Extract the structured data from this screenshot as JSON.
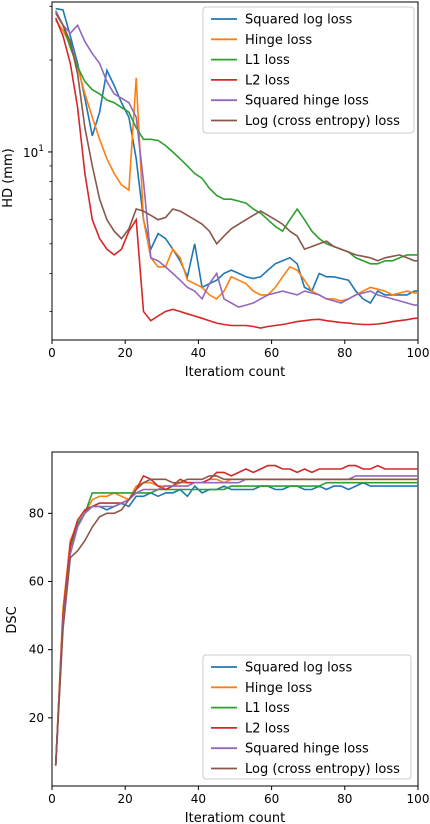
{
  "chart_data": [
    {
      "type": "line",
      "xlabel": "Iteratiom count",
      "ylabel": "HD (mm)",
      "yscale": "log",
      "xlim": [
        0,
        100
      ],
      "ylim": [
        2.42,
        31.0
      ],
      "xticks": [
        0,
        20,
        40,
        60,
        80,
        100
      ],
      "xtick_labels": [
        "0",
        "20",
        "40",
        "60",
        "80",
        "100"
      ],
      "ytick_label": "10^1",
      "legend": "top-right",
      "x": [
        1,
        3,
        5,
        7,
        9,
        11,
        13,
        15,
        17,
        19,
        21,
        23,
        25,
        27,
        29,
        31,
        33,
        35,
        37,
        39,
        41,
        43,
        45,
        47,
        49,
        51,
        53,
        55,
        57,
        59,
        61,
        63,
        65,
        67,
        69,
        71,
        73,
        75,
        77,
        79,
        81,
        83,
        85,
        87,
        89,
        91,
        93,
        95,
        97,
        99,
        100
      ],
      "series": [
        {
          "name": "Squared log loss",
          "color": "#1f77b4",
          "values": [
            29.5,
            29.2,
            24.0,
            19.5,
            15.0,
            11.3,
            13.5,
            18.5,
            16.5,
            14.5,
            13.0,
            9.5,
            6.0,
            4.8,
            5.4,
            5.2,
            4.8,
            4.4,
            3.9,
            5.0,
            3.6,
            3.7,
            3.8,
            4.0,
            4.1,
            4.0,
            3.9,
            3.85,
            3.9,
            4.1,
            4.3,
            4.4,
            4.5,
            4.3,
            3.6,
            3.5,
            4.0,
            3.9,
            3.9,
            3.85,
            3.8,
            3.5,
            3.3,
            3.2,
            3.5,
            3.4,
            3.4,
            3.4,
            3.4,
            3.5,
            3.5
          ]
        },
        {
          "name": "Hinge loss",
          "color": "#ff7f0e",
          "values": [
            27.0,
            25.0,
            22.5,
            19.0,
            15.5,
            13.0,
            11.0,
            9.5,
            8.5,
            7.8,
            7.5,
            17.5,
            6.0,
            4.5,
            4.2,
            4.2,
            4.8,
            4.5,
            3.8,
            3.7,
            3.6,
            3.4,
            3.3,
            3.5,
            3.9,
            3.8,
            3.7,
            3.5,
            3.4,
            3.4,
            3.6,
            3.9,
            4.2,
            4.1,
            3.8,
            3.5,
            3.4,
            3.3,
            3.3,
            3.25,
            3.3,
            3.4,
            3.5,
            3.6,
            3.55,
            3.5,
            3.4,
            3.45,
            3.5,
            3.45,
            3.45
          ]
        },
        {
          "name": "L1 loss",
          "color": "#2ca02c",
          "values": [
            29.0,
            26.0,
            22.0,
            19.0,
            17.0,
            16.0,
            15.5,
            14.8,
            14.5,
            14.0,
            13.5,
            12.0,
            11.0,
            11.0,
            10.9,
            10.5,
            10.0,
            9.5,
            9.0,
            8.5,
            8.2,
            7.6,
            7.2,
            7.0,
            7.0,
            6.9,
            6.8,
            6.5,
            6.3,
            6.0,
            5.7,
            5.5,
            6.0,
            6.5,
            6.0,
            5.5,
            5.2,
            5.0,
            4.9,
            4.8,
            4.7,
            4.5,
            4.4,
            4.3,
            4.3,
            4.4,
            4.4,
            4.5,
            4.6,
            4.6,
            4.6
          ]
        },
        {
          "name": "L2 loss",
          "color": "#d62728",
          "values": [
            27.5,
            24.0,
            19.5,
            14.0,
            8.5,
            6.0,
            5.2,
            4.8,
            4.6,
            4.8,
            5.5,
            6.0,
            3.0,
            2.8,
            2.9,
            3.0,
            3.05,
            3.0,
            2.95,
            2.9,
            2.85,
            2.8,
            2.75,
            2.72,
            2.7,
            2.7,
            2.7,
            2.68,
            2.65,
            2.68,
            2.7,
            2.72,
            2.75,
            2.78,
            2.8,
            2.82,
            2.83,
            2.8,
            2.78,
            2.76,
            2.75,
            2.73,
            2.72,
            2.72,
            2.73,
            2.75,
            2.78,
            2.8,
            2.82,
            2.85,
            2.85
          ]
        },
        {
          "name": "Squared hinge loss",
          "color": "#9467bd",
          "values": [
            29.0,
            26.0,
            24.5,
            26.0,
            23.0,
            21.0,
            19.5,
            17.0,
            15.5,
            15.0,
            14.5,
            13.0,
            8.0,
            4.5,
            4.4,
            4.2,
            4.0,
            3.8,
            3.6,
            3.5,
            3.3,
            3.7,
            4.0,
            3.3,
            3.2,
            3.1,
            3.15,
            3.2,
            3.3,
            3.4,
            3.45,
            3.5,
            3.45,
            3.4,
            3.5,
            3.45,
            3.4,
            3.3,
            3.25,
            3.2,
            3.3,
            3.4,
            3.45,
            3.5,
            3.4,
            3.35,
            3.3,
            3.25,
            3.2,
            3.15,
            3.15
          ]
        },
        {
          "name": "Log (cross entropy) loss",
          "color": "#8c564b",
          "values": [
            28.5,
            26.0,
            23.0,
            18.0,
            12.0,
            9.0,
            7.0,
            6.0,
            5.5,
            5.2,
            5.6,
            6.5,
            6.4,
            6.2,
            6.0,
            6.1,
            6.5,
            6.4,
            6.2,
            6.0,
            5.8,
            5.5,
            5.0,
            5.3,
            5.6,
            5.8,
            6.0,
            6.2,
            6.4,
            6.2,
            6.0,
            5.8,
            5.5,
            5.3,
            4.8,
            4.9,
            5.0,
            5.1,
            4.9,
            4.8,
            4.7,
            4.6,
            4.55,
            4.5,
            4.4,
            4.5,
            4.55,
            4.6,
            4.5,
            4.4,
            4.4
          ]
        }
      ]
    },
    {
      "type": "line",
      "xlabel": "Iteratiom count",
      "ylabel": "DSC",
      "xlim": [
        0,
        100
      ],
      "ylim": [
        0,
        98
      ],
      "xticks": [
        0,
        20,
        40,
        60,
        80,
        100
      ],
      "yticks": [
        20,
        40,
        60,
        80
      ],
      "legend": "lower-right",
      "x": [
        1,
        3,
        5,
        7,
        9,
        11,
        13,
        15,
        17,
        19,
        21,
        23,
        25,
        27,
        29,
        31,
        33,
        35,
        37,
        39,
        41,
        43,
        45,
        47,
        49,
        51,
        53,
        55,
        57,
        59,
        61,
        63,
        65,
        67,
        69,
        71,
        73,
        75,
        77,
        79,
        81,
        83,
        85,
        87,
        89,
        91,
        93,
        95,
        97,
        99,
        100
      ],
      "series": [
        {
          "name": "Squared log loss",
          "color": "#1f77b4",
          "values": [
            6,
            50,
            70,
            77,
            80,
            82,
            82,
            81,
            82,
            83,
            82,
            85,
            85,
            86,
            85,
            86,
            86,
            87,
            85,
            88,
            86,
            87,
            87,
            88,
            87,
            87,
            87,
            87,
            88,
            88,
            87,
            87,
            88,
            88,
            87,
            87,
            88,
            87,
            88,
            88,
            87,
            88,
            89,
            88,
            88,
            88,
            88,
            88,
            88,
            88,
            88
          ]
        },
        {
          "name": "Hinge loss",
          "color": "#ff7f0e",
          "values": [
            6,
            52,
            72,
            77,
            80,
            84,
            85,
            85,
            86,
            85,
            84,
            88,
            89,
            89,
            88,
            88,
            88,
            89,
            89,
            89,
            89,
            90,
            90,
            89,
            90,
            90,
            90,
            90,
            90,
            90,
            90,
            90,
            90,
            90,
            90,
            90,
            90,
            90,
            90,
            90,
            90,
            90,
            90,
            90,
            90,
            90,
            90,
            90,
            90,
            90,
            90
          ]
        },
        {
          "name": "L1 loss",
          "color": "#2ca02c",
          "values": [
            6,
            50,
            70,
            77,
            80,
            86,
            86,
            86,
            86,
            86,
            86,
            86,
            86,
            86,
            87,
            87,
            87,
            87,
            87,
            87,
            87,
            87,
            87,
            87,
            88,
            88,
            88,
            88,
            88,
            88,
            88,
            88,
            88,
            88,
            88,
            88,
            88,
            89,
            89,
            89,
            89,
            89,
            89,
            89,
            89,
            89,
            89,
            89,
            89,
            89,
            89
          ]
        },
        {
          "name": "L2 loss",
          "color": "#d62728",
          "values": [
            6,
            50,
            71,
            78,
            81,
            82,
            83,
            83,
            83,
            83,
            84,
            87,
            91,
            90,
            88,
            87,
            88,
            90,
            89,
            89,
            89,
            90,
            92,
            92,
            91,
            92,
            93,
            92,
            93,
            94,
            94,
            93,
            93,
            92,
            93,
            92,
            93,
            93,
            93,
            93,
            94,
            94,
            93,
            93,
            94,
            93,
            93,
            93,
            93,
            93,
            93
          ]
        },
        {
          "name": "Squared hinge loss",
          "color": "#9467bd",
          "values": [
            6,
            48,
            68,
            76,
            80,
            82,
            82,
            82,
            82,
            83,
            84,
            86,
            87,
            87,
            87,
            88,
            88,
            88,
            88,
            89,
            89,
            89,
            89,
            89,
            89,
            89,
            90,
            90,
            90,
            90,
            90,
            90,
            90,
            90,
            90,
            90,
            90,
            90,
            90,
            90,
            90,
            91,
            91,
            91,
            91,
            91,
            91,
            91,
            91,
            91,
            91
          ]
        },
        {
          "name": "Log (cross entropy) loss",
          "color": "#8c564b",
          "values": [
            6,
            46,
            67,
            69,
            72,
            76,
            79,
            80,
            80,
            81,
            84,
            87,
            89,
            90,
            90,
            90,
            89,
            89,
            90,
            90,
            90,
            91,
            91,
            90,
            90,
            90,
            90,
            90,
            90,
            90,
            90,
            90,
            90,
            90,
            90,
            90,
            90,
            90,
            90,
            90,
            90,
            90,
            90,
            90,
            90,
            90,
            90,
            90,
            90,
            90,
            90
          ]
        }
      ]
    }
  ]
}
